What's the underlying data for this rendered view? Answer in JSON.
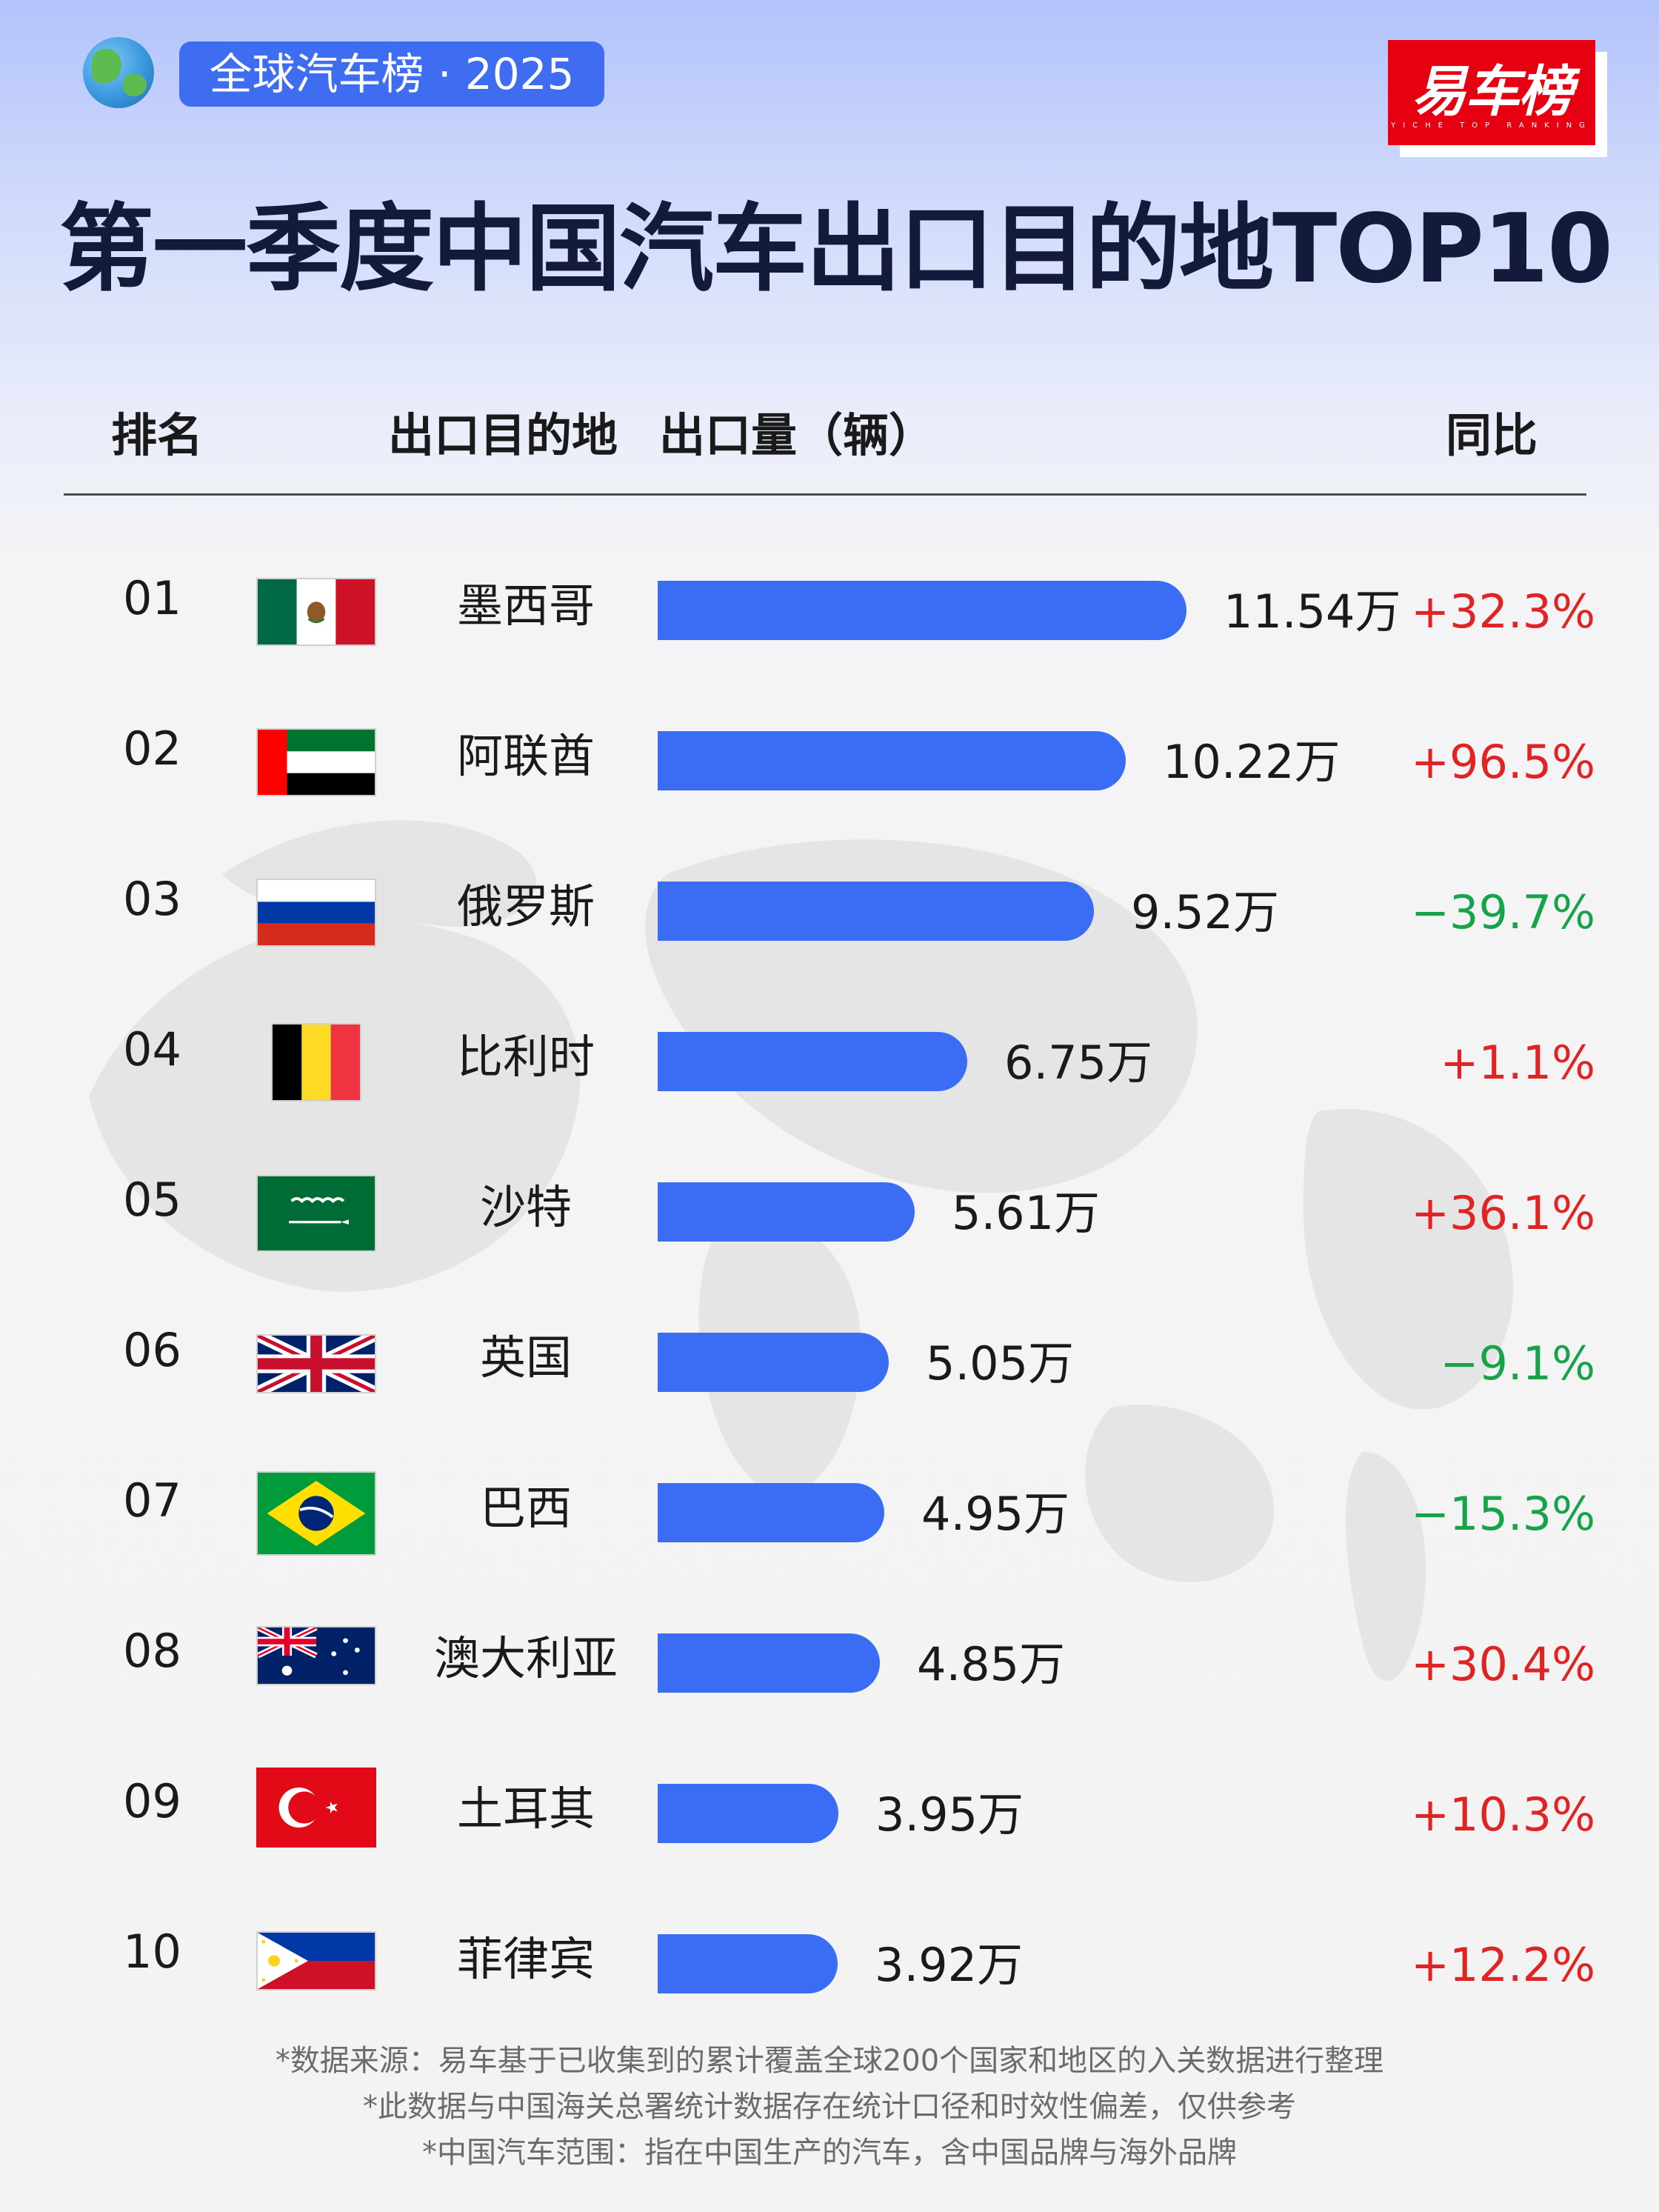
{
  "header": {
    "tag": "全球汽车榜 · 2025",
    "logo_text": "易车榜",
    "logo_subtext": "YICHE TOP RANKING",
    "title": "第一季度中国汽车出口目的地TOP10"
  },
  "columns": {
    "rank": "排名",
    "destination": "出口目的地",
    "volume": "出口量（辆）",
    "yoy": "同比"
  },
  "rows": [
    {
      "rank": "01",
      "country": "墨西哥",
      "value_label": "11.54万",
      "yoy": "+32.3%",
      "flag": "mexico-flag-icon"
    },
    {
      "rank": "02",
      "country": "阿联酋",
      "value_label": "10.22万",
      "yoy": "+96.5%",
      "flag": "uae-flag-icon"
    },
    {
      "rank": "03",
      "country": "俄罗斯",
      "value_label": "9.52万",
      "yoy": "−39.7%",
      "flag": "russia-flag-icon"
    },
    {
      "rank": "04",
      "country": "比利时",
      "value_label": "6.75万",
      "yoy": "+1.1%",
      "flag": "belgium-flag-icon"
    },
    {
      "rank": "05",
      "country": "沙特",
      "value_label": "5.61万",
      "yoy": "+36.1%",
      "flag": "saudi-arabia-flag-icon"
    },
    {
      "rank": "06",
      "country": "英国",
      "value_label": "5.05万",
      "yoy": "−9.1%",
      "flag": "uk-flag-icon"
    },
    {
      "rank": "07",
      "country": "巴西",
      "value_label": "4.95万",
      "yoy": "−15.3%",
      "flag": "brazil-flag-icon"
    },
    {
      "rank": "08",
      "country": "澳大利亚",
      "value_label": "4.85万",
      "yoy": "+30.4%",
      "flag": "australia-flag-icon"
    },
    {
      "rank": "09",
      "country": "土耳其",
      "value_label": "3.95万",
      "yoy": "+10.3%",
      "flag": "turkey-flag-icon"
    },
    {
      "rank": "10",
      "country": "菲律宾",
      "value_label": "3.92万",
      "yoy": "+12.2%",
      "flag": "philippines-flag-icon"
    }
  ],
  "chart_data": {
    "type": "bar",
    "orientation": "horizontal",
    "categories": [
      "墨西哥",
      "阿联酋",
      "俄罗斯",
      "比利时",
      "沙特",
      "英国",
      "巴西",
      "澳大利亚",
      "土耳其",
      "菲律宾"
    ],
    "values": [
      11.54,
      10.22,
      9.52,
      6.75,
      5.61,
      5.05,
      4.95,
      4.85,
      3.95,
      3.92
    ],
    "unit": "万",
    "yoy_percent": [
      32.3,
      96.5,
      -39.7,
      1.1,
      36.1,
      -9.1,
      -15.3,
      30.4,
      10.3,
      12.2
    ],
    "title": "第一季度中国汽车出口目的地TOP10",
    "ylabel": "出口量（辆）",
    "xlim": [
      0,
      11.54
    ],
    "grid": false,
    "bar_color": "#3a6cf4"
  },
  "colors": {
    "accent": "#3a6cf4",
    "tag_bg": "#3e6df2",
    "positive": "#e02424",
    "negative": "#17a34a",
    "logo_red": "#e60012",
    "title": "#141a3a"
  },
  "footnotes": [
    "*数据来源：易车基于已收集到的累计覆盖全球200个国家和地区的入关数据进行整理",
    "*此数据与中国海关总署统计数据存在统计口径和时效性偏差，仅供参考",
    "*中国汽车范围：指在中国生产的汽车，含中国品牌与海外品牌"
  ]
}
